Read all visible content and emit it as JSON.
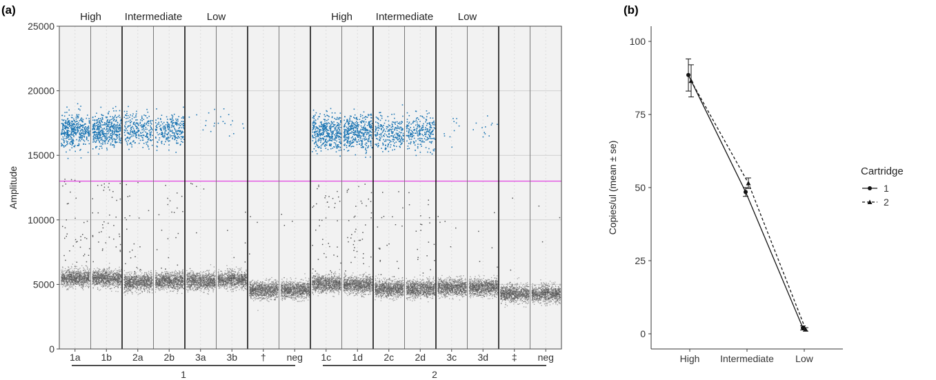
{
  "panels": {
    "a": "(a)",
    "b": "(b)"
  },
  "chart_data": [
    {
      "type": "scatter",
      "panel": "(a)",
      "ylabel": "Amplitude",
      "ylim": [
        0,
        25000
      ],
      "yticks": [
        0,
        5000,
        10000,
        15000,
        20000,
        25000
      ],
      "threshold": 13000,
      "threshold_color": "#e040e0",
      "positive_color": "#1f77b4",
      "negative_color": "#555555",
      "group_headers": [
        "High",
        "Intermediate",
        "Low",
        "High",
        "Intermediate",
        "Low"
      ],
      "wells": [
        "1a",
        "1b",
        "2a",
        "2b",
        "3a",
        "3b",
        "†",
        "neg",
        "1c",
        "1d",
        "2c",
        "2d",
        "3c",
        "3d",
        "‡",
        "neg"
      ],
      "cartridges": [
        "1",
        "2"
      ],
      "series": [
        {
          "well": "1a",
          "positive_center": 17000,
          "positive_count": 420,
          "negative_center": 5500,
          "outliers": 40
        },
        {
          "well": "1b",
          "positive_center": 17000,
          "positive_count": 420,
          "negative_center": 5500,
          "outliers": 40
        },
        {
          "well": "2a",
          "positive_center": 17000,
          "positive_count": 250,
          "negative_center": 5200,
          "outliers": 20
        },
        {
          "well": "2b",
          "positive_center": 17000,
          "positive_count": 250,
          "negative_center": 5300,
          "outliers": 20
        },
        {
          "well": "3a",
          "positive_center": 17500,
          "positive_count": 10,
          "negative_center": 5300,
          "outliers": 5
        },
        {
          "well": "3b",
          "positive_center": 17500,
          "positive_count": 12,
          "negative_center": 5400,
          "outliers": 5
        },
        {
          "well": "†",
          "positive_center": 17000,
          "positive_count": 0,
          "negative_center": 4600,
          "outliers": 3
        },
        {
          "well": "neg",
          "positive_center": 17000,
          "positive_count": 0,
          "negative_center": 4600,
          "outliers": 3
        },
        {
          "well": "1c",
          "positive_center": 16800,
          "positive_count": 420,
          "negative_center": 5100,
          "outliers": 40
        },
        {
          "well": "1d",
          "positive_center": 16800,
          "positive_count": 420,
          "negative_center": 5000,
          "outliers": 40
        },
        {
          "well": "2c",
          "positive_center": 16800,
          "positive_count": 250,
          "negative_center": 4700,
          "outliers": 20
        },
        {
          "well": "2d",
          "positive_center": 16800,
          "positive_count": 250,
          "negative_center": 4700,
          "outliers": 20
        },
        {
          "well": "3c",
          "positive_center": 17000,
          "positive_count": 10,
          "negative_center": 4800,
          "outliers": 5
        },
        {
          "well": "3d",
          "positive_center": 17200,
          "positive_count": 12,
          "negative_center": 4800,
          "outliers": 5
        },
        {
          "well": "‡",
          "positive_center": 17000,
          "positive_count": 0,
          "negative_center": 4300,
          "outliers": 3
        },
        {
          "well": "neg",
          "positive_center": 17000,
          "positive_count": 0,
          "negative_center": 4300,
          "outliers": 3
        }
      ]
    },
    {
      "type": "line",
      "panel": "(b)",
      "ylabel": "Copies/ul (mean ± se)",
      "ylim": [
        0,
        100
      ],
      "yticks": [
        0,
        25,
        50,
        75,
        100
      ],
      "categories": [
        "High",
        "Intermediate",
        "Low"
      ],
      "legend_title": "Cartridge",
      "legend_position": "right",
      "series": [
        {
          "name": "1",
          "values": [
            88.5,
            48.5,
            2.0
          ],
          "se": [
            5.5,
            1.5,
            0.7
          ],
          "line": "solid",
          "marker": "circle"
        },
        {
          "name": "2",
          "values": [
            86.5,
            51.5,
            1.5
          ],
          "se": [
            5.5,
            1.8,
            0.6
          ],
          "line": "dashed",
          "marker": "triangle"
        }
      ]
    }
  ]
}
